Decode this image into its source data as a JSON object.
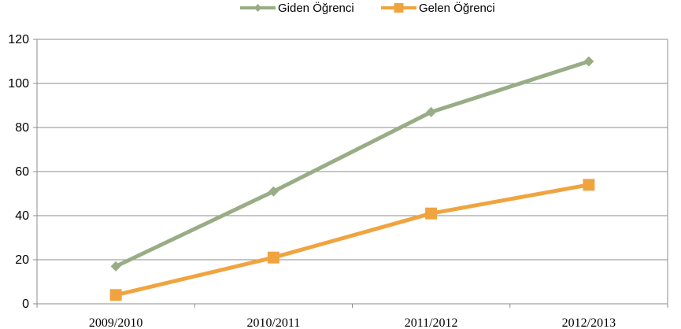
{
  "chart_data": {
    "type": "line",
    "categories": [
      "2009/2010",
      "2010/2011",
      "2011/2012",
      "2012/2013"
    ],
    "series": [
      {
        "name": "Giden Öğrenci",
        "values": [
          17,
          51,
          87,
          110
        ],
        "color": "#98ad85",
        "marker": "diamond"
      },
      {
        "name": "Gelen Öğrenci",
        "values": [
          4,
          21,
          41,
          54
        ],
        "color": "#f0a440",
        "marker": "square"
      }
    ],
    "ylim": [
      0,
      120
    ],
    "yticks": [
      "0",
      "20",
      "40",
      "60",
      "80",
      "100",
      "120"
    ],
    "grid": true,
    "legend": "top-center",
    "title": "",
    "xlabel": "",
    "ylabel": ""
  }
}
